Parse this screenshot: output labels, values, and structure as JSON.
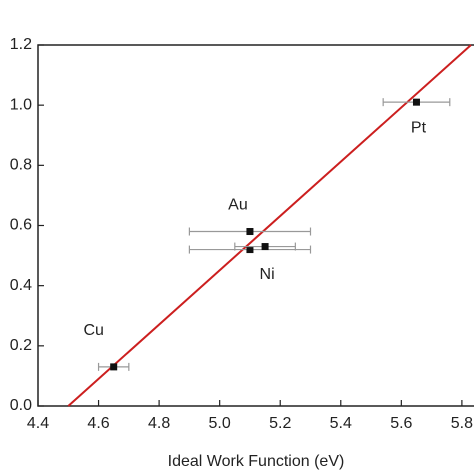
{
  "chart_data": {
    "type": "scatter",
    "x_label": "Ideal Work Function (eV)",
    "xlim": [
      4.4,
      5.84
    ],
    "ylim": [
      0,
      1.2
    ],
    "xticks": [
      4.4,
      4.6,
      4.8,
      {
        "value": 5,
        "label": "5.0"
      },
      5.2,
      5.4,
      5.6,
      5.8
    ],
    "yticks": [
      {
        "value": 0,
        "label": "0.0"
      },
      0.2,
      0.4,
      0.6,
      0.8,
      {
        "value": 1,
        "label": "1.0"
      },
      1.2
    ],
    "series": [
      {
        "color": "#111111",
        "error_color": "#999999",
        "x": [
          4.65,
          5.1,
          5.1,
          5.15,
          5.65
        ],
        "values": [
          0.13,
          0.58,
          0.52,
          0.53,
          1.01
        ],
        "xerr": [
          0.05,
          0.2,
          0.2,
          0.1,
          0.11
        ],
        "labels": [
          "Cu",
          "Au",
          null,
          "Ni",
          "Pt"
        ]
      }
    ],
    "fit": {
      "color": "#cc1f1f",
      "x": [
        4.5,
        5.83
      ],
      "values": [
        0,
        1.2
      ]
    }
  }
}
